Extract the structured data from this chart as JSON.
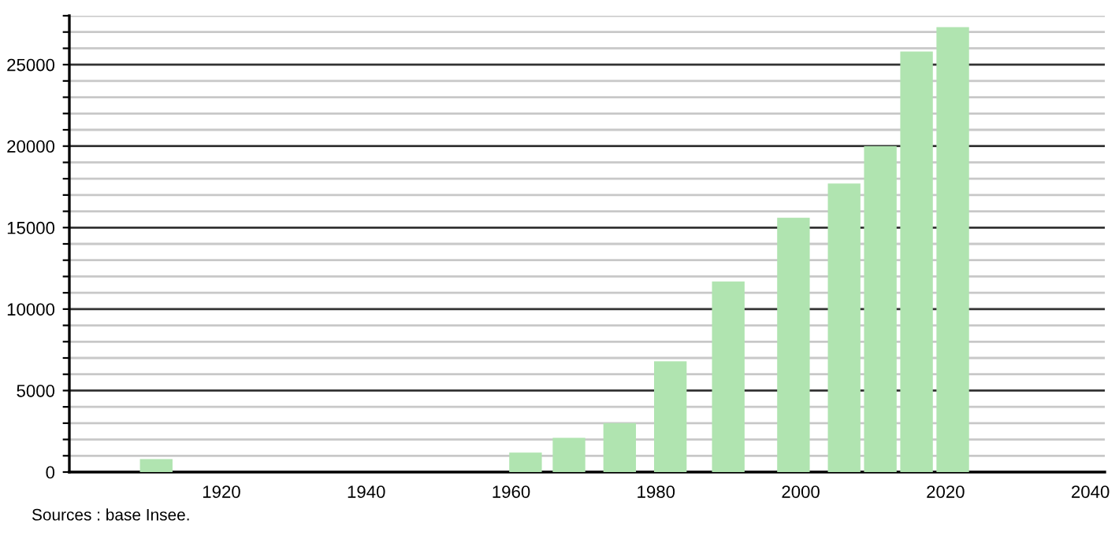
{
  "chart_data": {
    "type": "bar",
    "x": [
      1911,
      1962,
      1968,
      1975,
      1982,
      1990,
      1999,
      2006,
      2011,
      2016,
      2021
    ],
    "values": [
      800,
      1200,
      2100,
      3000,
      6800,
      11700,
      15600,
      17700,
      20000,
      25800,
      27300
    ],
    "color": "#b0e4b0",
    "xlim": [
      1899,
      2042
    ],
    "xticks": [
      1920,
      1940,
      1960,
      1980,
      2000,
      2020,
      2040
    ],
    "ylim": [
      0,
      28000
    ],
    "yticks": [
      0,
      {
        "value": 1000,
        "label": null
      },
      {
        "value": 2000,
        "label": null
      },
      {
        "value": 3000,
        "label": null
      },
      {
        "value": 4000,
        "label": null
      },
      5000,
      {
        "value": 6000,
        "label": null
      },
      {
        "value": 7000,
        "label": null
      },
      {
        "value": 8000,
        "label": null
      },
      {
        "value": 9000,
        "label": null
      },
      10000,
      {
        "value": 11000,
        "label": null
      },
      {
        "value": 12000,
        "label": null
      },
      {
        "value": 13000,
        "label": null
      },
      {
        "value": 14000,
        "label": null
      },
      15000,
      {
        "value": 16000,
        "label": null
      },
      {
        "value": 17000,
        "label": null
      },
      {
        "value": 18000,
        "label": null
      },
      {
        "value": 19000,
        "label": null
      },
      20000,
      {
        "value": 21000,
        "label": null
      },
      {
        "value": 22000,
        "label": null
      },
      {
        "value": 23000,
        "label": null
      },
      {
        "value": 24000,
        "label": null
      },
      25000,
      {
        "value": 26000,
        "label": null
      },
      {
        "value": 27000,
        "label": null
      },
      {
        "value": 28000,
        "label": null
      }
    ],
    "grid": "y",
    "annotations": [
      "Sources : base Insee."
    ]
  }
}
